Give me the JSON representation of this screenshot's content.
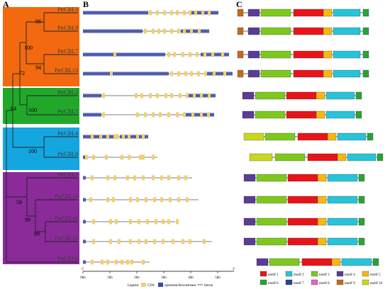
{
  "panels": {
    "a": "A",
    "b": "B",
    "c": "C"
  },
  "genes": [
    "PtrCBL3",
    "PtrCBL9",
    "PtrCBL7",
    "PtrCBL13",
    "PtrCBL2",
    "PtrCBL5",
    "PtrCBL4",
    "PtrCBL8",
    "PtrCBL1",
    "PtrCBL12",
    "PtrCBL10",
    "PtrCBL11",
    "PtrCBL6"
  ],
  "bootstrap": [
    "96",
    "100",
    "94",
    "72",
    "100",
    "64",
    "100",
    "58",
    "99",
    "99"
  ],
  "clade_colors": [
    "#f2690f",
    "#21a82a",
    "#14a6df",
    "#8a2b99"
  ],
  "axis_ticks": [
    "0kb",
    "1kb",
    "2kb",
    "3kb",
    "4kb",
    "5kb"
  ],
  "axis_end": "3'",
  "axis_start": "5'",
  "structure_legend": {
    "title": "Legend",
    "cds": "CDS",
    "utr": "upstream/downstream",
    "intron": "Intron"
  },
  "structure_colors": {
    "cds": "#f0d070",
    "utr": "#3848a8",
    "intron": "#555555"
  },
  "motif_legend": [
    {
      "label": "motif 1",
      "color": "#e8141a"
    },
    {
      "label": "motif 2",
      "color": "#28c3d8"
    },
    {
      "label": "motif 3",
      "color": "#7ec81e"
    },
    {
      "label": "motif 4",
      "color": "#5a3c94"
    },
    {
      "label": "motif 5",
      "color": "#f4b814"
    },
    {
      "label": "motif 6",
      "color": "#2aa238"
    },
    {
      "label": "motif 7",
      "color": "#24449c"
    },
    {
      "label": "motif 8",
      "color": "#e066c0"
    },
    {
      "label": "motif 9",
      "color": "#c46a20"
    },
    {
      "label": "motif 10",
      "color": "#c8d81e"
    }
  ]
}
